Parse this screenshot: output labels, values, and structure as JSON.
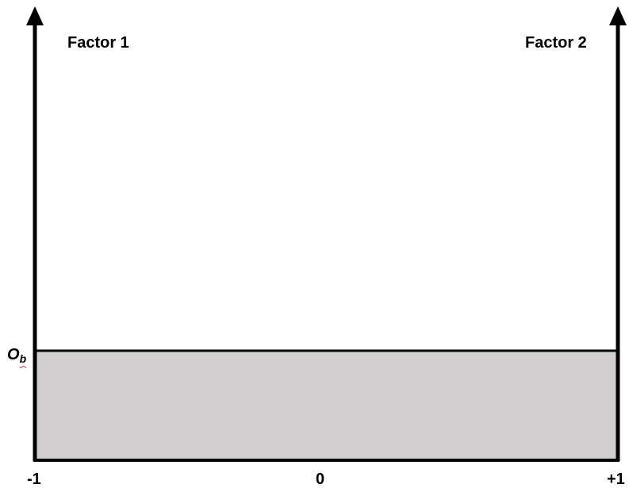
{
  "diagram": {
    "axis_left_title": "Factor 1",
    "axis_right_title": "Factor 2",
    "baseline_label_main": "O",
    "baseline_label_sub": "b",
    "x_ticks": [
      "-1",
      "0",
      "+1"
    ],
    "colors": {
      "line": "#000000",
      "band_fill": "#d0cece",
      "background": "#ffffff",
      "spellcheck_underline": "#d83a3a"
    }
  }
}
